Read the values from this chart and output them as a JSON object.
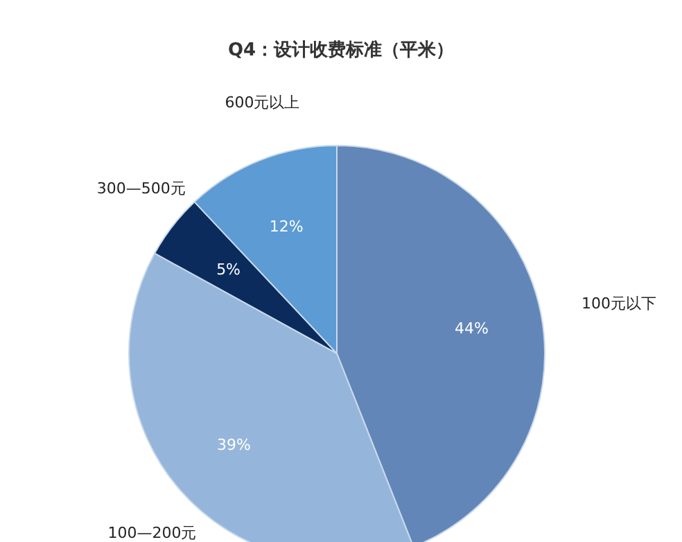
{
  "chart_data": {
    "type": "pie",
    "title": "Q4：设计收费标准（平米）",
    "categories": [
      "100元以下",
      "100—200元",
      "300—500元",
      "600元以上"
    ],
    "values": [
      44,
      39,
      5,
      12
    ],
    "colors": [
      "#6386b8",
      "#95b6da",
      "#0b2b5c",
      "#5c9bd3"
    ],
    "value_labels": [
      "44%",
      "39%",
      "5%",
      "12%"
    ]
  }
}
